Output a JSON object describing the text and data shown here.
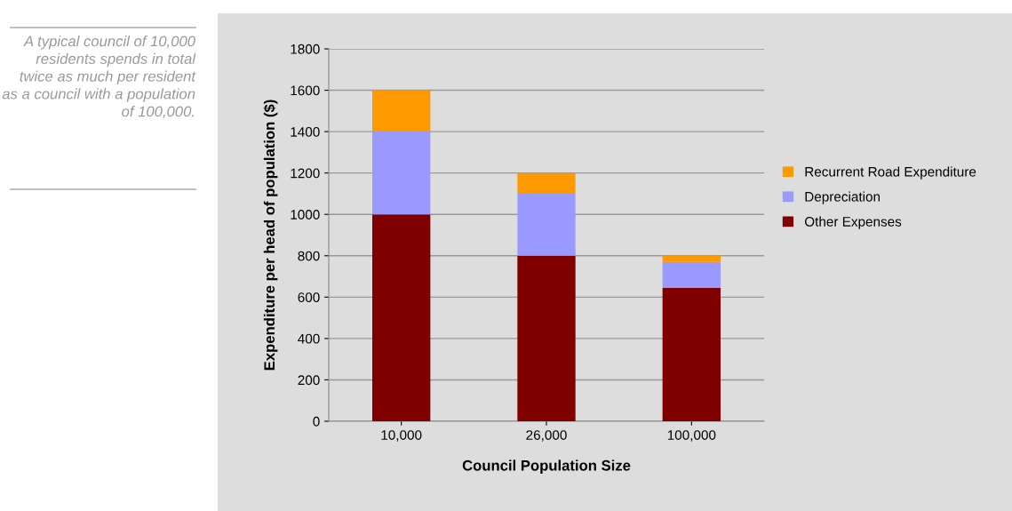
{
  "chart_data": {
    "type": "bar",
    "stacked": true,
    "xlabel": "Council Population Size",
    "ylabel": "Expenditure per head of population ($)",
    "annotations": [
      "A typical council of 10,000 residents spends in total twice as much per resident as a council with a population of 100,000."
    ],
    "categories": [
      "10,000",
      "26,000",
      "100,000"
    ],
    "series": [
      {
        "name": "Other Expenses",
        "color": "#800000",
        "values": [
          1000,
          800,
          645
        ]
      },
      {
        "name": "Depreciation",
        "color": "#9999ff",
        "values": [
          400,
          300,
          125
        ]
      },
      {
        "name": "Recurrent Road Expenditure",
        "color": "#ff9900",
        "values": [
          200,
          100,
          30
        ]
      }
    ],
    "ylim": [
      0,
      1800
    ],
    "yticks": [
      0,
      200,
      400,
      600,
      800,
      1000,
      1200,
      1400,
      1600,
      1800
    ],
    "grid": "y",
    "legend": "right"
  }
}
